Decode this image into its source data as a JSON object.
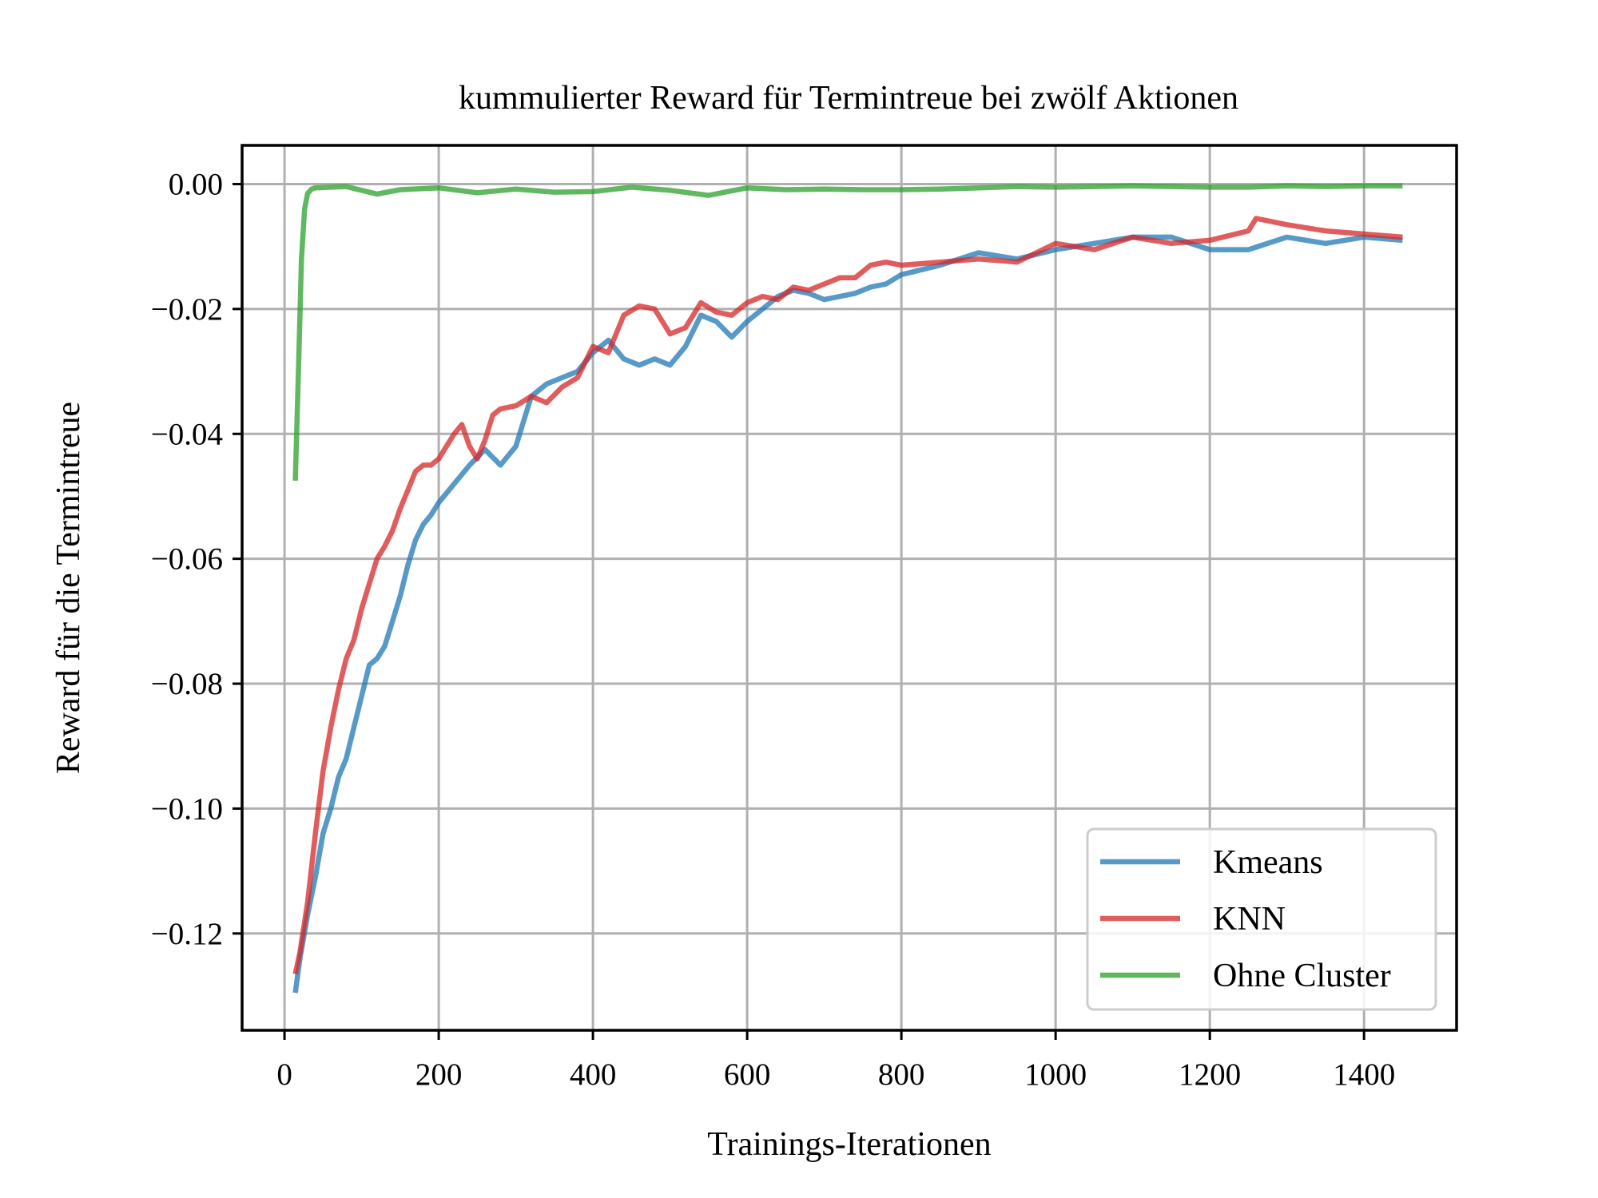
{
  "chart_data": {
    "type": "line",
    "title": "kummulierter Reward für Termintreue bei zwölf Aktionen",
    "xlabel": "Trainings-Iterationen",
    "ylabel": "Reward für die Termintreue",
    "xlim": [
      -55,
      1520
    ],
    "ylim": [
      -0.1355,
      0.0062
    ],
    "xticks": [
      0,
      200,
      400,
      600,
      800,
      1000,
      1200,
      1400
    ],
    "xtick_labels": [
      "0",
      "200",
      "400",
      "600",
      "800",
      "1000",
      "1200",
      "1400"
    ],
    "yticks": [
      0.0,
      -0.02,
      -0.04,
      -0.06,
      -0.08,
      -0.1,
      -0.12
    ],
    "ytick_labels": [
      "0.00",
      "−0.02",
      "−0.04",
      "−0.06",
      "−0.08",
      "−0.10",
      "−0.12"
    ],
    "grid": true,
    "legend_position": "lower-right",
    "series": [
      {
        "name": "Kmeans",
        "color": "#1f77b4",
        "x": [
          14,
          20,
          30,
          40,
          50,
          60,
          70,
          80,
          90,
          100,
          110,
          120,
          130,
          140,
          150,
          160,
          170,
          180,
          190,
          200,
          220,
          240,
          260,
          280,
          300,
          320,
          340,
          360,
          380,
          400,
          420,
          440,
          460,
          480,
          500,
          520,
          540,
          560,
          580,
          600,
          620,
          640,
          660,
          680,
          700,
          720,
          740,
          760,
          780,
          800,
          850,
          900,
          950,
          1000,
          1050,
          1100,
          1150,
          1200,
          1250,
          1300,
          1350,
          1400,
          1450
        ],
        "y": [
          -0.1295,
          -0.124,
          -0.117,
          -0.111,
          -0.104,
          -0.1,
          -0.095,
          -0.092,
          -0.087,
          -0.082,
          -0.077,
          -0.076,
          -0.074,
          -0.07,
          -0.066,
          -0.061,
          -0.057,
          -0.0545,
          -0.053,
          -0.051,
          -0.048,
          -0.045,
          -0.0425,
          -0.045,
          -0.042,
          -0.034,
          -0.032,
          -0.031,
          -0.03,
          -0.027,
          -0.025,
          -0.028,
          -0.029,
          -0.028,
          -0.029,
          -0.026,
          -0.021,
          -0.022,
          -0.0245,
          -0.022,
          -0.02,
          -0.018,
          -0.017,
          -0.0175,
          -0.0185,
          -0.018,
          -0.0175,
          -0.0165,
          -0.016,
          -0.0145,
          -0.013,
          -0.011,
          -0.012,
          -0.0105,
          -0.0095,
          -0.0085,
          -0.0085,
          -0.0105,
          -0.0105,
          -0.0085,
          -0.0095,
          -0.0085,
          -0.009
        ]
      },
      {
        "name": "KNN",
        "color": "#d62728",
        "x": [
          14,
          20,
          30,
          40,
          50,
          60,
          70,
          80,
          90,
          100,
          110,
          120,
          130,
          140,
          150,
          160,
          170,
          180,
          190,
          200,
          210,
          220,
          230,
          240,
          250,
          260,
          270,
          280,
          300,
          320,
          340,
          360,
          380,
          400,
          420,
          440,
          460,
          480,
          500,
          520,
          540,
          560,
          580,
          600,
          620,
          640,
          660,
          680,
          700,
          720,
          740,
          760,
          780,
          800,
          850,
          900,
          950,
          1000,
          1050,
          1100,
          1150,
          1200,
          1250,
          1260,
          1300,
          1350,
          1400,
          1450
        ],
        "y": [
          -0.1265,
          -0.123,
          -0.115,
          -0.104,
          -0.094,
          -0.087,
          -0.081,
          -0.076,
          -0.073,
          -0.068,
          -0.064,
          -0.06,
          -0.058,
          -0.0555,
          -0.052,
          -0.049,
          -0.046,
          -0.045,
          -0.045,
          -0.044,
          -0.042,
          -0.04,
          -0.0385,
          -0.042,
          -0.044,
          -0.041,
          -0.037,
          -0.036,
          -0.0355,
          -0.034,
          -0.035,
          -0.0325,
          -0.031,
          -0.026,
          -0.027,
          -0.021,
          -0.0195,
          -0.02,
          -0.024,
          -0.023,
          -0.019,
          -0.0205,
          -0.021,
          -0.019,
          -0.018,
          -0.0185,
          -0.0165,
          -0.017,
          -0.016,
          -0.015,
          -0.015,
          -0.013,
          -0.0125,
          -0.013,
          -0.0125,
          -0.012,
          -0.0125,
          -0.0095,
          -0.0105,
          -0.0085,
          -0.0095,
          -0.009,
          -0.0075,
          -0.0055,
          -0.0065,
          -0.0075,
          -0.008,
          -0.0085
        ]
      },
      {
        "name": "Ohne Cluster",
        "color": "#2ca02c",
        "x": [
          14,
          18,
          22,
          26,
          30,
          35,
          40,
          60,
          80,
          100,
          120,
          150,
          200,
          250,
          300,
          350,
          400,
          450,
          500,
          550,
          600,
          650,
          700,
          750,
          800,
          850,
          900,
          950,
          1000,
          1050,
          1100,
          1150,
          1200,
          1250,
          1300,
          1350,
          1400,
          1450
        ],
        "y": [
          -0.0475,
          -0.03,
          -0.012,
          -0.004,
          -0.0015,
          -0.0008,
          -0.0006,
          -0.0005,
          -0.0004,
          -0.001,
          -0.0016,
          -0.0009,
          -0.0006,
          -0.0014,
          -0.0008,
          -0.0013,
          -0.0012,
          -0.0005,
          -0.001,
          -0.0018,
          -0.0006,
          -0.0009,
          -0.0008,
          -0.0009,
          -0.0009,
          -0.0008,
          -0.0006,
          -0.0004,
          -0.0005,
          -0.0004,
          -0.0003,
          -0.0004,
          -0.0005,
          -0.0005,
          -0.0003,
          -0.0004,
          -0.0003,
          -0.0003
        ]
      }
    ]
  }
}
